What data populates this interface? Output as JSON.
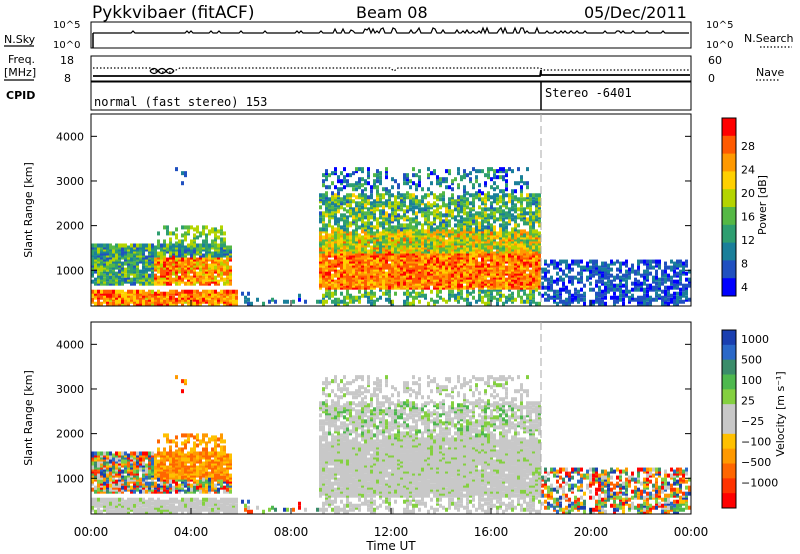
{
  "header": {
    "station": "Pykkvibaer (fitACF)",
    "beam": "Beam 08",
    "date": "05/Dec/2011"
  },
  "strip_panels": {
    "nsky_label": "N.Sky",
    "nsearch_label": "N.Search",
    "nsky_ticks": [
      "10^5",
      "10^0"
    ],
    "nsearch_ticks": [
      "10^5",
      "10^0"
    ],
    "freq_label_line1": "Freq.",
    "freq_label_line2": "[MHz]",
    "freq_ticks": [
      "18",
      "8"
    ],
    "nave_label": "Nave",
    "nave_ticks": [
      "60",
      "0"
    ],
    "cpid_label": "CPID",
    "cpid_mode_1": "normal (fast stereo) 153",
    "cpid_mode_2": "Stereo -6401"
  },
  "chart_data": [
    {
      "type": "heatmap",
      "parameter": "power",
      "ylabel": "Slant Range [km]",
      "ylim": [
        200,
        4500
      ],
      "yticks": [
        "1000",
        "2000",
        "3000",
        "4000"
      ],
      "xlim_hours": [
        0,
        24
      ],
      "colorbar_label": "Power [dB]",
      "colorbar_ticks": [
        "28",
        "24",
        "20",
        "16",
        "12",
        "8",
        "4"
      ],
      "colorbar_colors": [
        "#ff0000",
        "#ff5a00",
        "#ff9900",
        "#ffd000",
        "#b4d400",
        "#55b845",
        "#2e9e70",
        "#1a7f9a",
        "#2050c0",
        "#0000ff"
      ]
    },
    {
      "type": "heatmap",
      "parameter": "velocity",
      "ylabel": "Slant Range [km]",
      "ylim": [
        200,
        4500
      ],
      "yticks": [
        "1000",
        "2000",
        "3000",
        "4000"
      ],
      "xlim_hours": [
        0,
        24
      ],
      "colorbar_label": "Velocity [m s⁻¹]",
      "colorbar_ticks": [
        "1000",
        "500",
        "100",
        "25",
        "−25",
        "−100",
        "−500",
        "−1000"
      ],
      "colorbar_colors": [
        "#1a3fb0",
        "#2a68c8",
        "#3a8c6a",
        "#4eb84e",
        "#84d040",
        "#c8c8c8",
        "#c8c8c8",
        "#ffc000",
        "#ff9900",
        "#ff6600",
        "#ff3300",
        "#ff0000"
      ]
    }
  ],
  "x_axis": {
    "label": "Time UT",
    "ticks": [
      "00:00",
      "04:00",
      "08:00",
      "12:00",
      "16:00",
      "20:00",
      "00:00"
    ]
  }
}
